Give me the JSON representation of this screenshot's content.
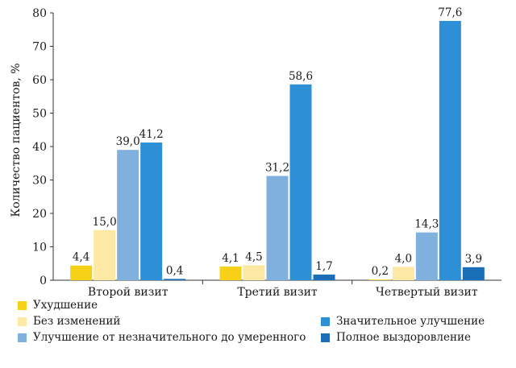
{
  "chart_data": {
    "type": "bar",
    "ylabel": "Количество пациентов, %",
    "ylim": [
      0,
      80
    ],
    "yticks": [
      0,
      10,
      20,
      30,
      40,
      50,
      60,
      70,
      80
    ],
    "categories": [
      "Второй визит",
      "Третий визит",
      "Четвертый визит"
    ],
    "series": [
      {
        "name": "Ухудшение",
        "color": "#f7d117",
        "values": [
          4.4,
          4.1,
          0.2
        ],
        "labels": [
          "4,4",
          "4,1",
          "0,2"
        ]
      },
      {
        "name": "Без изменений",
        "color": "#fde9a3",
        "values": [
          15.0,
          4.5,
          4.0
        ],
        "labels": [
          "15,0",
          "4,5",
          "4,0"
        ]
      },
      {
        "name": "Улучшение от незначительного до умеренного",
        "color": "#7fb0de",
        "values": [
          39.0,
          31.2,
          14.3
        ],
        "labels": [
          "39,0",
          "31,2",
          "14,3"
        ]
      },
      {
        "name": "Значительное улучшение",
        "color": "#2d8fd6",
        "values": [
          41.2,
          58.6,
          77.6
        ],
        "labels": [
          "41,2",
          "58,6",
          "77,6"
        ]
      },
      {
        "name": "Полное выздоровление",
        "color": "#1a6fb8",
        "values": [
          0.4,
          1.7,
          3.9
        ],
        "labels": [
          "0,4",
          "1,7",
          "3,9"
        ]
      }
    ],
    "grid": false,
    "legend_position": "bottom"
  }
}
